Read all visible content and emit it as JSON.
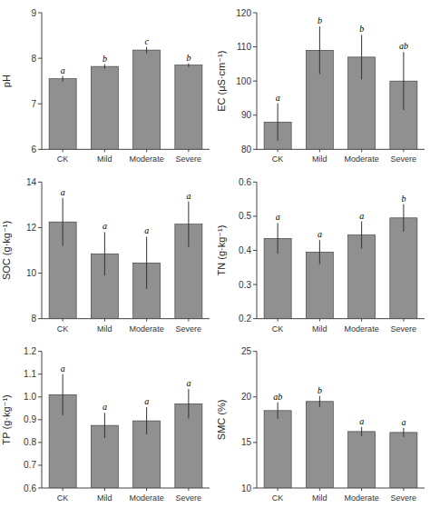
{
  "chart_data": [
    {
      "type": "bar",
      "y_label": "pH",
      "categories": [
        "CK",
        "Mild",
        "Moderate",
        "Severe"
      ],
      "values": [
        7.55,
        7.82,
        8.18,
        7.85
      ],
      "errors": [
        0.06,
        0.05,
        0.07,
        0.04
      ],
      "annotations": [
        "a",
        "b",
        "c",
        "b"
      ],
      "color": "#909090",
      "ylim": [
        6,
        9
      ],
      "yticks": [
        6,
        7,
        8,
        9
      ],
      "grid": false
    },
    {
      "type": "bar",
      "y_label": "EC (μS·cm⁻¹)",
      "categories": [
        "CK",
        "Mild",
        "Moderate",
        "Severe"
      ],
      "values": [
        88.0,
        109.0,
        107.0,
        100.0
      ],
      "errors": [
        5.5,
        7.0,
        6.5,
        8.5
      ],
      "annotations": [
        "a",
        "b",
        "b",
        "ab"
      ],
      "color": "#909090",
      "ylim": [
        80,
        120
      ],
      "yticks": [
        80,
        90,
        100,
        110,
        120
      ],
      "grid": false
    },
    {
      "type": "bar",
      "y_label": "SOC (g·kg⁻¹)",
      "categories": [
        "CK",
        "Mild",
        "Moderate",
        "Severe"
      ],
      "values": [
        12.25,
        10.85,
        10.45,
        12.15
      ],
      "errors": [
        1.05,
        0.95,
        1.15,
        1.0
      ],
      "annotations": [
        "a",
        "a",
        "a",
        "a"
      ],
      "color": "#909090",
      "ylim": [
        8,
        14
      ],
      "yticks": [
        8,
        10,
        12,
        14
      ],
      "grid": false
    },
    {
      "type": "bar",
      "y_label": "TN (g·kg⁻¹)",
      "categories": [
        "CK",
        "Mild",
        "Moderate",
        "Severe"
      ],
      "values": [
        0.435,
        0.395,
        0.445,
        0.495
      ],
      "errors": [
        0.045,
        0.035,
        0.04,
        0.04
      ],
      "annotations": [
        "a",
        "a",
        "a",
        "b"
      ],
      "color": "#909090",
      "ylim": [
        0.2,
        0.6
      ],
      "yticks": [
        0.2,
        0.3,
        0.4,
        0.5,
        0.6
      ],
      "grid": false
    },
    {
      "type": "bar",
      "y_label": "TP (g·kg⁻¹)",
      "categories": [
        "CK",
        "Mild",
        "Moderate",
        "Severe"
      ],
      "values": [
        1.01,
        0.875,
        0.895,
        0.97
      ],
      "errors": [
        0.09,
        0.055,
        0.06,
        0.065
      ],
      "annotations": [
        "a",
        "a",
        "a",
        "a"
      ],
      "color": "#909090",
      "ylim": [
        0.6,
        1.2
      ],
      "yticks": [
        0.6,
        0.7,
        0.8,
        0.9,
        {
          "value": 1,
          "label": "1.0"
        },
        1.1,
        1.2
      ],
      "grid": false
    },
    {
      "type": "bar",
      "y_label": "SMC (%)",
      "categories": [
        "CK",
        "Mild",
        "Moderate",
        "Severe"
      ],
      "values": [
        18.5,
        19.5,
        16.2,
        16.1
      ],
      "errors": [
        0.9,
        0.6,
        0.5,
        0.5
      ],
      "annotations": [
        "ab",
        "b",
        "a",
        "a"
      ],
      "color": "#909090",
      "ylim": [
        10,
        25
      ],
      "yticks": [
        10,
        15,
        20,
        25
      ],
      "grid": false
    }
  ]
}
